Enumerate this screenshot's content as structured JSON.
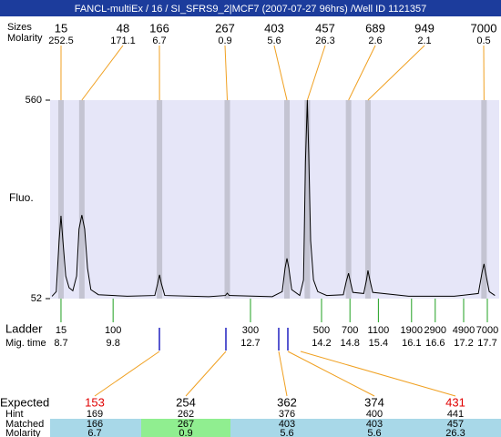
{
  "title": "FANCL-multiEx / 16 / SI_SFRS9_2|MCF7 (2007-07-27 96hrs) /Well ID 1121357",
  "peaks": {
    "labels": [
      "Sizes",
      "Molarity"
    ],
    "sizes": [
      15,
      48,
      166,
      267,
      403,
      457,
      689,
      949,
      7000
    ],
    "molarity": [
      252.5,
      171.1,
      6.7,
      0.9,
      5.6,
      26.3,
      2.6,
      2.1,
      0.5
    ],
    "times": [
      8.7,
      9.14,
      10.78,
      12.21,
      13.47,
      13.9,
      14.77,
      15.18,
      17.63
    ]
  },
  "chart_data": {
    "type": "line",
    "y_label": "Fluo.",
    "ylim": [
      52,
      560
    ],
    "yticks": [
      52,
      560
    ],
    "xlim": [
      8.47,
      17.95
    ],
    "x": [
      8.51,
      8.6,
      8.66,
      8.7,
      8.74,
      8.8,
      8.87,
      8.95,
      9.03,
      9.08,
      9.14,
      9.2,
      9.26,
      9.33,
      9.49,
      10.1,
      10.68,
      10.74,
      10.78,
      10.82,
      10.89,
      11.82,
      12.17,
      12.21,
      12.25,
      13.16,
      13.37,
      13.43,
      13.47,
      13.51,
      13.57,
      13.74,
      13.82,
      13.86,
      13.9,
      13.93,
      13.97,
      14.03,
      14.12,
      14.31,
      14.66,
      14.72,
      14.77,
      14.81,
      14.86,
      15.09,
      15.15,
      15.18,
      15.22,
      15.28,
      16.04,
      17.0,
      17.51,
      17.59,
      17.63,
      17.66,
      17.74,
      17.86
    ],
    "series": [
      {
        "color": "#000000",
        "values": [
          58,
          70,
          200,
          264,
          200,
          110,
          80,
          72,
          110,
          230,
          266,
          230,
          130,
          75,
          62,
          58,
          60,
          90,
          113,
          90,
          60,
          57,
          60,
          66,
          60,
          57,
          70,
          130,
          155,
          130,
          75,
          60,
          100,
          400,
          560,
          420,
          200,
          100,
          70,
          60,
          62,
          95,
          117,
          95,
          68,
          65,
          100,
          124,
          100,
          68,
          58,
          58,
          65,
          120,
          141,
          120,
          70,
          60
        ]
      }
    ]
  },
  "ladder": {
    "labels": [
      "Ladder",
      "Mig. time"
    ],
    "sizes": [
      15,
      100,
      300,
      500,
      700,
      1100,
      1900,
      2900,
      4900,
      7000
    ],
    "mig_times": [
      8.7,
      9.8,
      12.7,
      14.2,
      14.8,
      15.4,
      16.1,
      16.6,
      17.2,
      17.7
    ]
  },
  "expected": {
    "labels": [
      "Expected",
      "Hint",
      "Matched",
      "Molarity"
    ],
    "expected": [
      153,
      254,
      362,
      374,
      431
    ],
    "expected_colors": [
      "#e00000",
      "#000000",
      "#000000",
      "#000000",
      "#e00000"
    ],
    "hint": [
      169,
      262,
      376,
      400,
      441
    ],
    "matched": [
      166,
      267,
      403,
      403,
      457
    ],
    "matched_colors": [
      "#a8d8e8",
      "#90ee90",
      "#a8d8e8",
      "#a8d8e8",
      "#a8d8e8"
    ],
    "molarity": [
      6.7,
      0.9,
      5.6,
      5.6,
      26.3
    ]
  }
}
